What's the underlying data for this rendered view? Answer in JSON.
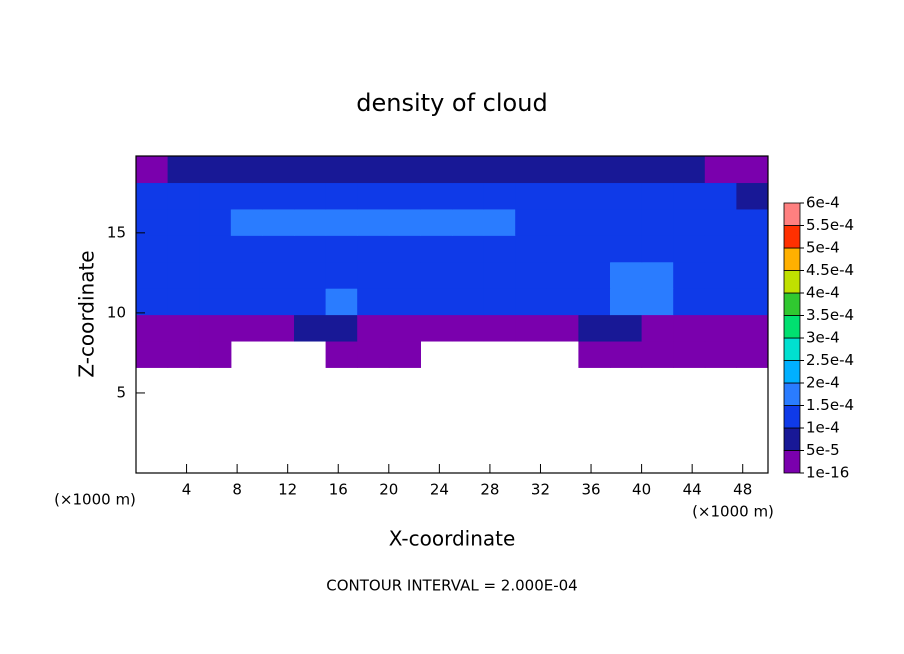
{
  "chart_data": {
    "type": "heatmap",
    "title": "density of cloud",
    "x_label": "X-coordinate",
    "y_label": "Z-coordinate",
    "x_unit": "(×1000 m)",
    "y_unit": "(×1000 m)",
    "footer": "CONTOUR INTERVAL = 2.000E-04",
    "xlim": [
      0,
      50
    ],
    "xticks": [
      4,
      8,
      12,
      16,
      20,
      24,
      28,
      32,
      36,
      40,
      44,
      48
    ],
    "ylim": [
      0,
      19.8
    ],
    "yticks": [
      5,
      10,
      15
    ],
    "x": [
      1.25,
      3.75,
      6.25,
      8.75,
      11.25,
      13.75,
      16.25,
      18.75,
      21.25,
      23.75,
      26.25,
      28.75,
      31.25,
      33.75,
      36.25,
      38.75,
      41.25,
      43.75,
      46.25,
      48.75
    ],
    "y": [
      0.825,
      2.475,
      4.125,
      5.775,
      7.425,
      9.075,
      10.725,
      12.375,
      14.025,
      15.675,
      17.325,
      18.975
    ],
    "z": [
      [
        null,
        null,
        null,
        null,
        null,
        null,
        null,
        null,
        null,
        null,
        null,
        null,
        null,
        null,
        null,
        null,
        null,
        null,
        null,
        null
      ],
      [
        null,
        null,
        null,
        null,
        null,
        null,
        null,
        null,
        null,
        null,
        null,
        null,
        null,
        null,
        null,
        null,
        null,
        null,
        null,
        null
      ],
      [
        null,
        null,
        null,
        null,
        null,
        null,
        null,
        null,
        null,
        null,
        null,
        null,
        null,
        null,
        null,
        null,
        null,
        null,
        null,
        null
      ],
      [
        null,
        null,
        null,
        null,
        null,
        null,
        null,
        null,
        null,
        null,
        null,
        null,
        null,
        null,
        null,
        null,
        null,
        null,
        null,
        null
      ],
      [
        3e-05,
        3e-05,
        3e-05,
        null,
        null,
        null,
        3e-05,
        3e-05,
        3e-05,
        null,
        null,
        null,
        null,
        null,
        3e-05,
        3e-05,
        3e-05,
        3e-05,
        3e-05,
        3e-05
      ],
      [
        3e-05,
        3e-05,
        3e-05,
        3e-05,
        3e-05,
        7e-05,
        7e-05,
        3e-05,
        3e-05,
        3e-05,
        3e-05,
        3e-05,
        3e-05,
        3e-05,
        7e-05,
        7e-05,
        3e-05,
        3e-05,
        3e-05,
        3e-05
      ],
      [
        0.00011,
        0.00011,
        0.00011,
        0.00011,
        0.00011,
        0.00011,
        0.00016,
        0.00011,
        0.00011,
        0.00011,
        0.00011,
        0.00011,
        0.00011,
        0.00011,
        0.00011,
        0.00016,
        0.00016,
        0.00011,
        0.00011,
        0.00011
      ],
      [
        0.00012,
        0.00013,
        0.00013,
        0.00013,
        0.00013,
        0.00013,
        0.00013,
        0.00013,
        0.00013,
        0.00013,
        0.00013,
        0.00013,
        0.00013,
        0.00013,
        0.00013,
        0.00016,
        0.00017,
        0.00013,
        0.00013,
        0.00013
      ],
      [
        0.000135,
        0.000135,
        0.00011,
        0.000135,
        0.000135,
        0.000135,
        0.000135,
        0.000135,
        0.000135,
        0.000135,
        0.000135,
        0.000135,
        0.000135,
        0.000135,
        0.000135,
        0.000135,
        0.000135,
        0.000135,
        0.000135,
        0.000135
      ],
      [
        0.000145,
        0.000145,
        0.00013,
        0.000155,
        0.000155,
        0.000155,
        0.000155,
        0.000155,
        0.000155,
        0.000155,
        0.000155,
        0.000155,
        0.00014,
        0.00014,
        0.00014,
        0.00014,
        0.00014,
        0.00014,
        0.00014,
        0.00014
      ],
      [
        0.00012,
        0.000145,
        0.000145,
        0.000145,
        0.000145,
        0.000145,
        0.000145,
        0.000145,
        0.000145,
        0.000145,
        0.000145,
        0.000145,
        0.000145,
        0.000145,
        0.000145,
        0.000145,
        0.000145,
        0.000145,
        0.00012,
        8e-05
      ],
      [
        3e-05,
        7e-05,
        7e-05,
        7e-05,
        7e-05,
        7e-05,
        7e-05,
        7e-05,
        7e-05,
        7e-05,
        7e-05,
        7e-05,
        7e-05,
        7e-05,
        7e-05,
        7e-05,
        7e-05,
        7e-05,
        3e-05,
        3e-05
      ]
    ],
    "colorbar": {
      "levels": [
        {
          "value": 1e-16,
          "label": "1e-16"
        },
        {
          "value": 5e-05,
          "label": "5e-5"
        },
        {
          "value": 0.0001,
          "label": "1e-4"
        },
        {
          "value": 0.00015,
          "label": "1.5e-4"
        },
        {
          "value": 0.0002,
          "label": "2e-4"
        },
        {
          "value": 0.00025,
          "label": "2.5e-4"
        },
        {
          "value": 0.0003,
          "label": "3e-4"
        },
        {
          "value": 0.00035,
          "label": "3.5e-4"
        },
        {
          "value": 0.0004,
          "label": "4e-4"
        },
        {
          "value": 0.00045,
          "label": "4.5e-4"
        },
        {
          "value": 0.0005,
          "label": "5e-4"
        },
        {
          "value": 0.00055,
          "label": "5.5e-4"
        },
        {
          "value": 0.0006,
          "label": "6e-4"
        }
      ],
      "colors": [
        "#7a00ad",
        "#181896",
        "#0f3ae8",
        "#2a7cff",
        "#00b0ff",
        "#00e0d0",
        "#00e070",
        "#30c830",
        "#c0e000",
        "#ffb000",
        "#ff3000",
        "#ff8080"
      ]
    }
  }
}
